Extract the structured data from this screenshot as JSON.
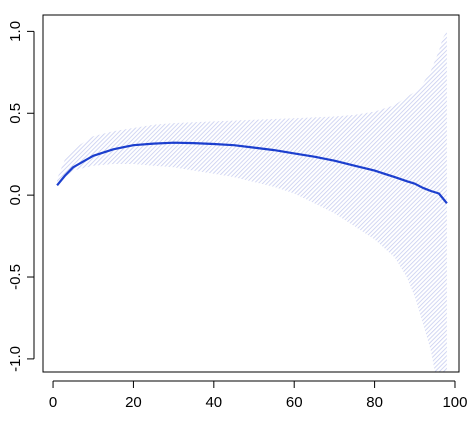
{
  "chart_data": {
    "type": "line",
    "title": "",
    "xlabel": "",
    "ylabel": "",
    "xlim": [
      -2.5,
      101
    ],
    "ylim": [
      -1.08,
      1.1
    ],
    "grid": false,
    "x_ticks": [
      {
        "value": 0,
        "label": "0"
      },
      {
        "value": 20,
        "label": "20"
      },
      {
        "value": 40,
        "label": "40"
      },
      {
        "value": 60,
        "label": "60"
      },
      {
        "value": 80,
        "label": "80"
      },
      {
        "value": 100,
        "label": "100"
      }
    ],
    "y_ticks": [
      {
        "value": -1.0,
        "label": "-1.0"
      },
      {
        "value": -0.5,
        "label": "-0.5"
      },
      {
        "value": 0.0,
        "label": "0.0"
      },
      {
        "value": 0.5,
        "label": "0.5"
      },
      {
        "value": 1.0,
        "label": "1.0"
      }
    ],
    "line_color": "#1c3fce",
    "band_color": "#c7cdf0",
    "series": [
      {
        "x": [
          1,
          3,
          5,
          10,
          15,
          20,
          25,
          30,
          35,
          40,
          45,
          50,
          55,
          60,
          65,
          70,
          75,
          80,
          85,
          88,
          90,
          92,
          94,
          96,
          98
        ],
        "y": [
          0.06,
          0.12,
          0.17,
          0.24,
          0.28,
          0.305,
          0.315,
          0.32,
          0.318,
          0.312,
          0.305,
          0.29,
          0.275,
          0.255,
          0.235,
          0.21,
          0.18,
          0.15,
          0.11,
          0.085,
          0.07,
          0.045,
          0.025,
          0.01,
          -0.05
        ]
      }
    ],
    "band": {
      "x": [
        1,
        3,
        5,
        10,
        15,
        20,
        25,
        30,
        35,
        40,
        45,
        50,
        55,
        60,
        65,
        70,
        75,
        80,
        85,
        88,
        90,
        92,
        94,
        95,
        96,
        97,
        98
      ],
      "upper": [
        0.1,
        0.22,
        0.28,
        0.36,
        0.39,
        0.41,
        0.43,
        0.44,
        0.445,
        0.45,
        0.455,
        0.46,
        0.465,
        0.47,
        0.475,
        0.48,
        0.49,
        0.51,
        0.55,
        0.6,
        0.63,
        0.68,
        0.76,
        0.82,
        0.88,
        0.96,
        1.0
      ],
      "lower": [
        0.05,
        0.11,
        0.15,
        0.18,
        0.19,
        0.19,
        0.18,
        0.17,
        0.15,
        0.13,
        0.11,
        0.08,
        0.05,
        0.01,
        -0.05,
        -0.11,
        -0.19,
        -0.27,
        -0.38,
        -0.5,
        -0.62,
        -0.78,
        -0.95,
        -1.08,
        -1.08,
        -1.08,
        -1.08
      ]
    }
  }
}
